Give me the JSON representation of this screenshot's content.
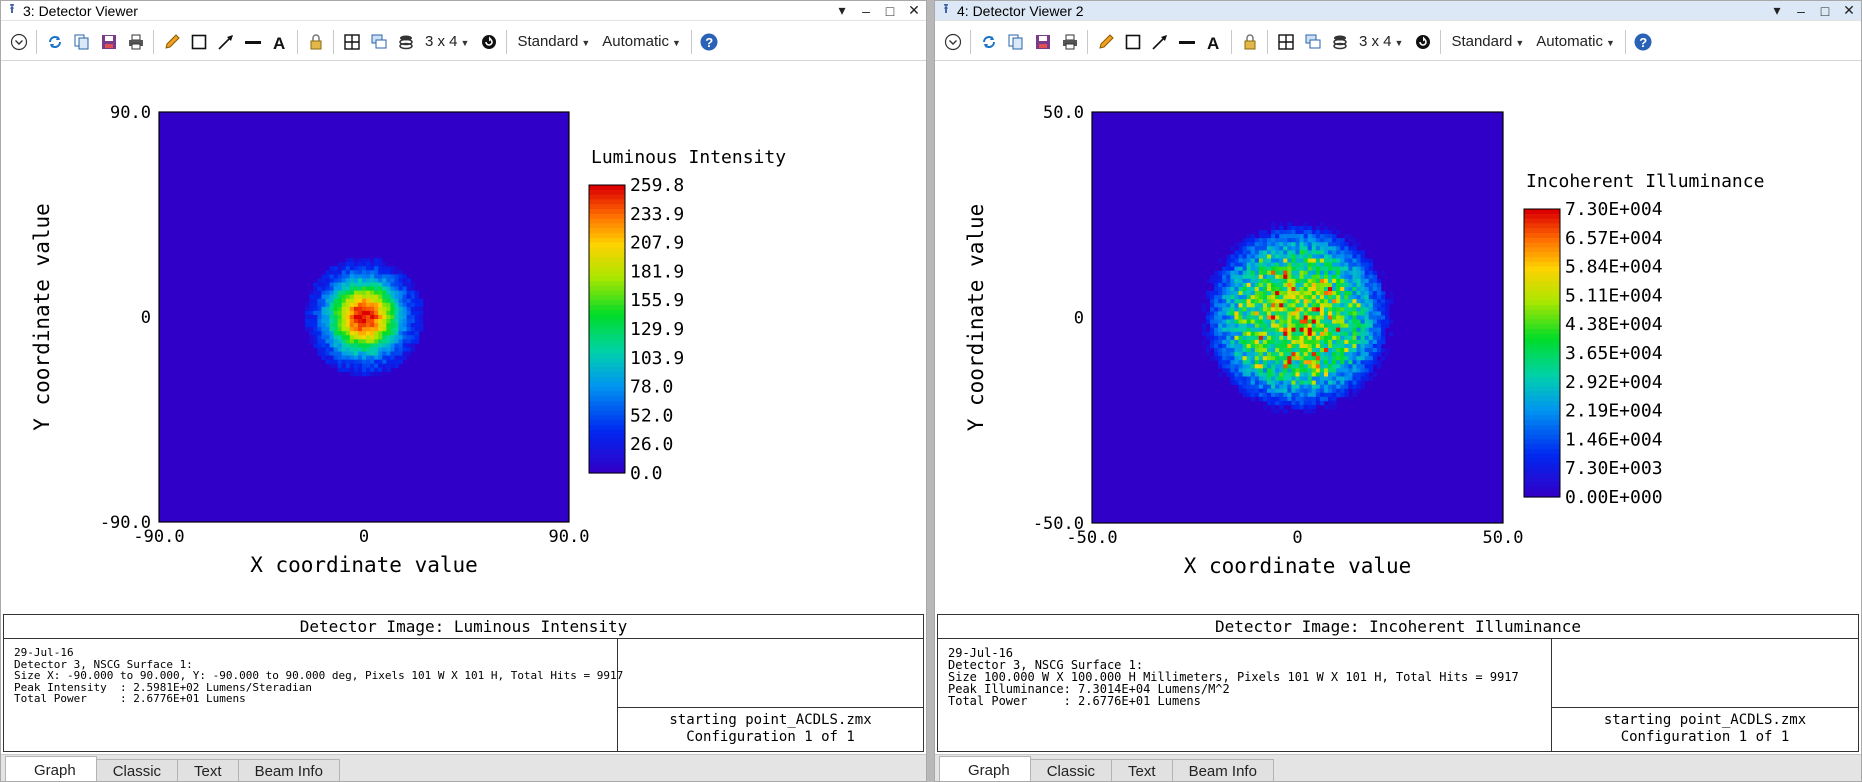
{
  "viewers": [
    {
      "title": "3: Detector Viewer",
      "toolbar": {
        "layout": "3 x 4",
        "standard": "Standard",
        "automatic": "Automatic"
      },
      "chart_data": {
        "type": "heatmap",
        "xlabel": "X coordinate value",
        "ylabel": "Y coordinate value",
        "xlim": [
          -90.0,
          90.0
        ],
        "ylim": [
          -90.0,
          90.0
        ],
        "x_ticks": [
          "-90.0",
          "0",
          "90.0"
        ],
        "y_ticks": [
          "90.0",
          "0",
          "-90.0"
        ],
        "colorbar_title": "Luminous Intensity",
        "colorbar_labels": [
          "259.8",
          "233.9",
          "207.9",
          "181.9",
          "155.9",
          "129.9",
          "103.9",
          "78.0",
          "52.0",
          "26.0",
          "0.0"
        ],
        "spot": {
          "center_x": 0,
          "center_y": 0,
          "peak": 259.8,
          "radius": 21
        }
      },
      "info": {
        "header": "Detector Image: Luminous Intensity",
        "lines": [
          "29-Jul-16",
          "Detector 3, NSCG Surface 1:",
          "Size X: -90.000 to 90.000, Y: -90.000 to 90.000 deg, Pixels 101 W X 101 H, Total Hits = 9917",
          "Peak Intensity  : 2.5981E+02 Lumens/Steradian",
          "Total Power     : 2.6776E+01 Lumens"
        ],
        "file": "starting point_ACDLS.zmx",
        "config": "Configuration 1 of 1"
      },
      "tabs": [
        "Graph",
        "Classic",
        "Text",
        "Beam Info"
      ]
    },
    {
      "title": "4: Detector Viewer 2",
      "toolbar": {
        "layout": "3 x 4",
        "standard": "Standard",
        "automatic": "Automatic"
      },
      "chart_data": {
        "type": "heatmap",
        "xlabel": "X coordinate value",
        "ylabel": "Y coordinate value",
        "xlim": [
          -50.0,
          50.0
        ],
        "ylim": [
          -50.0,
          50.0
        ],
        "x_ticks": [
          "-50.0",
          "0",
          "50.0"
        ],
        "y_ticks": [
          "50.0",
          "0",
          "-50.0"
        ],
        "colorbar_title": "Incoherent Illuminance",
        "colorbar_labels": [
          "7.30E+004",
          "6.57E+004",
          "5.84E+004",
          "5.11E+004",
          "4.38E+004",
          "3.65E+004",
          "2.92E+004",
          "2.19E+004",
          "1.46E+004",
          "7.30E+003",
          "0.00E+000"
        ],
        "spot": {
          "center_x": 0,
          "center_y": 0,
          "peak": 73014,
          "radius": 23
        }
      },
      "info": {
        "header": "Detector Image: Incoherent Illuminance",
        "lines": [
          "29-Jul-16",
          "Detector 3, NSCG Surface 1:",
          "Size 100.000 W X 100.000 H Millimeters, Pixels 101 W X 101 H, Total Hits = 9917",
          "Peak Illuminance: 7.3014E+04 Lumens/M^2",
          "Total Power     : 2.6776E+01 Lumens"
        ],
        "file": "starting point_ACDLS.zmx",
        "config": "Configuration 1 of 1"
      },
      "tabs": [
        "Graph",
        "Classic",
        "Text",
        "Beam Info"
      ]
    }
  ]
}
